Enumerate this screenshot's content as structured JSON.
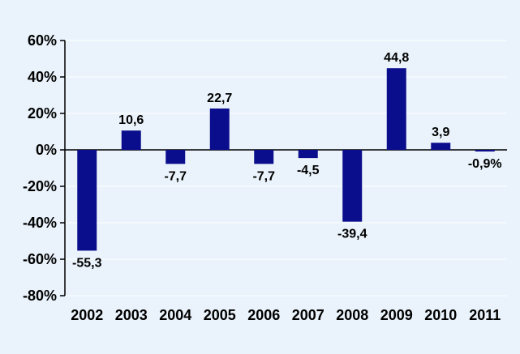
{
  "chart_data": {
    "type": "bar",
    "categories": [
      "2002",
      "2003",
      "2004",
      "2005",
      "2006",
      "2007",
      "2008",
      "2009",
      "2010",
      "2011"
    ],
    "values": [
      -55.3,
      10.6,
      -7.7,
      22.7,
      -7.7,
      -4.5,
      -39.4,
      44.8,
      3.9,
      -0.9
    ],
    "data_labels": [
      "-55,3",
      "10,6",
      "-7,7",
      "22,7",
      "-7,7",
      "-4,5",
      "-39,4",
      "44,8",
      "3,9",
      "-0,9%"
    ],
    "ylim": [
      -80,
      60
    ],
    "yticks": [
      60,
      40,
      20,
      0,
      -20,
      -40,
      -60,
      -80
    ],
    "ytick_labels": [
      "60%",
      "40%",
      "20%",
      "0%",
      "-20%",
      "-40%",
      "-60%",
      "-80%"
    ],
    "grid": true,
    "legend": "none",
    "bar_color": "#0b0e8c",
    "grid_color": "#ffffff",
    "background": "#eaf3fb"
  }
}
